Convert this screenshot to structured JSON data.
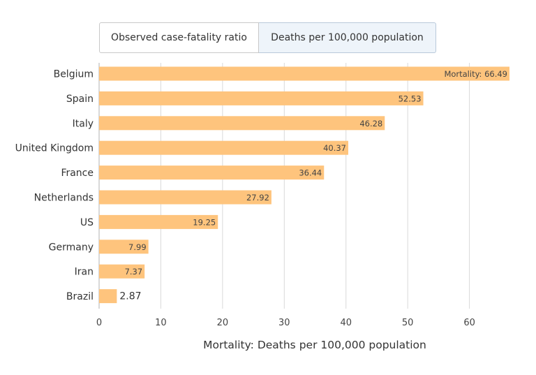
{
  "tabs": {
    "cfr_label": "Observed case-fatality ratio",
    "deaths_label": "Deaths per 100,000 population",
    "active": "deaths"
  },
  "colors": {
    "bar": "#fec47d",
    "grid": "#d9d9d9",
    "axis": "#b0b0b0"
  },
  "chart_data": {
    "type": "bar",
    "orientation": "horizontal",
    "categories": [
      "Belgium",
      "Spain",
      "Italy",
      "United Kingdom",
      "France",
      "Netherlands",
      "US",
      "Germany",
      "Iran",
      "Brazil"
    ],
    "values": [
      66.49,
      52.53,
      46.28,
      40.37,
      36.44,
      27.92,
      19.25,
      7.99,
      7.37,
      2.87
    ],
    "data_labels": [
      "Mortality: 66.49",
      "52.53",
      "46.28",
      "40.37",
      "36.44",
      "27.92",
      "19.25",
      "7.99",
      "7.37",
      "2.87"
    ],
    "x_ticks": [
      "0",
      "10",
      "20",
      "30",
      "40",
      "50",
      "60"
    ],
    "xlim": [
      0,
      66.49
    ],
    "xlabel": "Mortality: Deaths per 100,000 population",
    "ylabel": "",
    "grid": true,
    "legend": false
  }
}
